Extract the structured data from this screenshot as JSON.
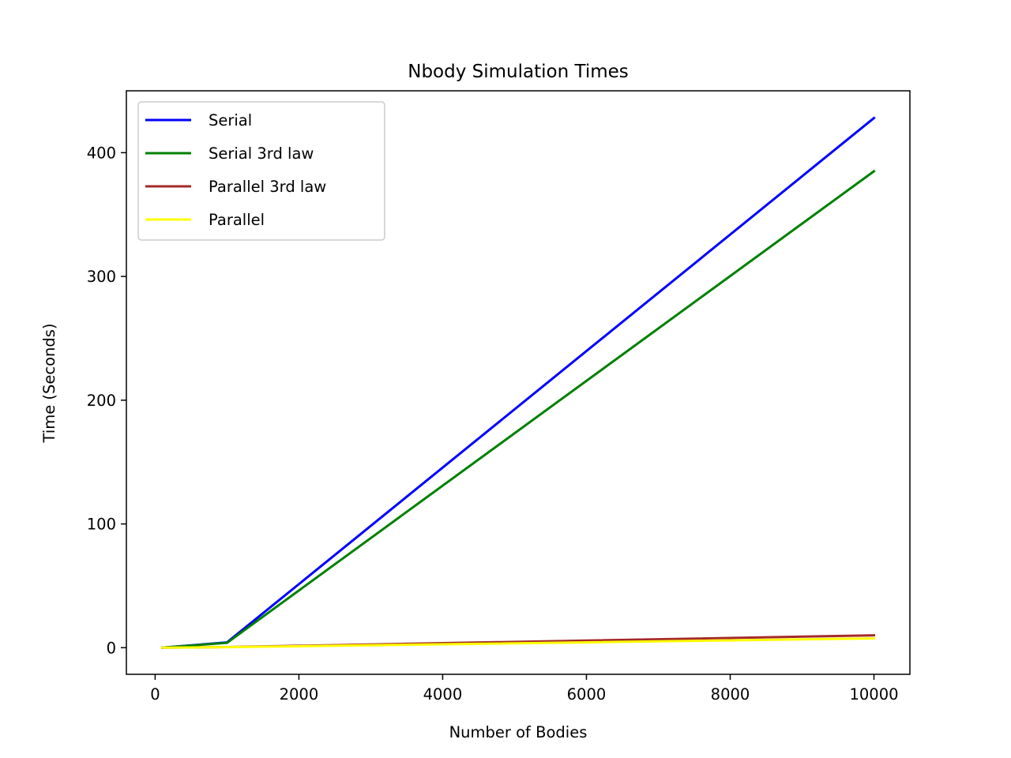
{
  "chart_data": {
    "type": "line",
    "title": "Nbody Simulation Times",
    "xlabel": "Number of Bodies",
    "ylabel": "Time (Seconds)",
    "x": [
      100,
      1000,
      10000
    ],
    "xlim": [
      -400,
      10500
    ],
    "ylim": [
      -21.5,
      450
    ],
    "xticks": [
      0,
      2000,
      4000,
      6000,
      8000,
      10000
    ],
    "xtick_labels": [
      "0",
      "2000",
      "4000",
      "6000",
      "8000",
      "10000"
    ],
    "yticks": [
      0,
      100,
      200,
      300,
      400
    ],
    "ytick_labels": [
      "0",
      "100",
      "200",
      "300",
      "400"
    ],
    "grid": false,
    "legend_position": "upper-left",
    "series": [
      {
        "name": "Serial",
        "color": "#0000ff",
        "values": [
          0.05,
          4.3,
          428
        ]
      },
      {
        "name": "Serial 3rd law",
        "color": "#008000",
        "values": [
          0.04,
          3.9,
          385
        ]
      },
      {
        "name": "Parallel 3rd law",
        "color": "#a52a2a",
        "values": [
          0.01,
          0.5,
          10
        ]
      },
      {
        "name": "Parallel",
        "color": "#ffff00",
        "values": [
          0.01,
          0.4,
          7.5
        ]
      }
    ]
  }
}
